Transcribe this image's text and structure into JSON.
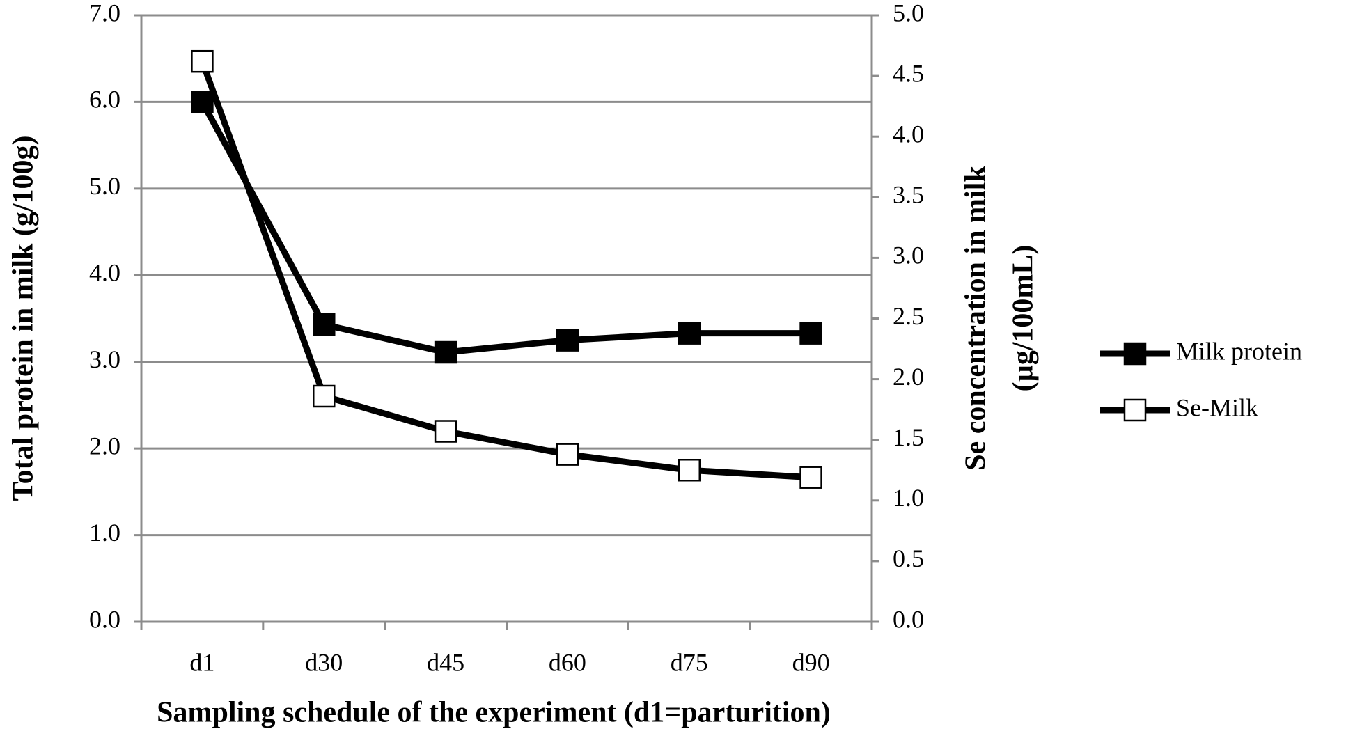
{
  "chart_data": {
    "type": "line",
    "xlabel": "Sampling schedule of the experiment (d1=parturition)",
    "ylabel": "Total protein in milk (g/100g)",
    "y2label": [
      "Se concentration in milk",
      "(µg/100mL)"
    ],
    "categories": [
      "d1",
      "d30",
      "d45",
      "d60",
      "d75",
      "d90"
    ],
    "series": [
      {
        "name": "Milk protein",
        "color": "#000000",
        "marker_fill": "#000000",
        "values": [
          6.0,
          3.43,
          3.11,
          3.25,
          3.33,
          3.33
        ]
      },
      {
        "name": "Se-Milk",
        "color": "#000000",
        "marker_fill": "#ffffff",
        "axis": "y2",
        "values": [
          4.62,
          1.86,
          1.57,
          1.38,
          1.25,
          1.19
        ]
      }
    ],
    "ylim": [
      0,
      7
    ],
    "yticks": [
      {
        "value": 0,
        "label": "0.0"
      },
      {
        "value": 1,
        "label": "1.0"
      },
      {
        "value": 2,
        "label": "2.0"
      },
      {
        "value": 3,
        "label": "3.0"
      },
      {
        "value": 4,
        "label": "4.0"
      },
      {
        "value": 5,
        "label": "5.0"
      },
      {
        "value": 6,
        "label": "6.0"
      },
      {
        "value": 7,
        "label": "7.0"
      }
    ],
    "y2lim": [
      0,
      5
    ],
    "y2ticks": [
      {
        "value": 0,
        "label": "0.0"
      },
      0.5,
      {
        "value": 1,
        "label": "1.0"
      },
      1.5,
      {
        "value": 2,
        "label": "2.0"
      },
      2.5,
      {
        "value": 3,
        "label": "3.0"
      },
      3.5,
      {
        "value": 4,
        "label": "4.0"
      },
      4.5,
      {
        "value": 5,
        "label": "5.0"
      }
    ],
    "grid": true,
    "legend": "right"
  }
}
